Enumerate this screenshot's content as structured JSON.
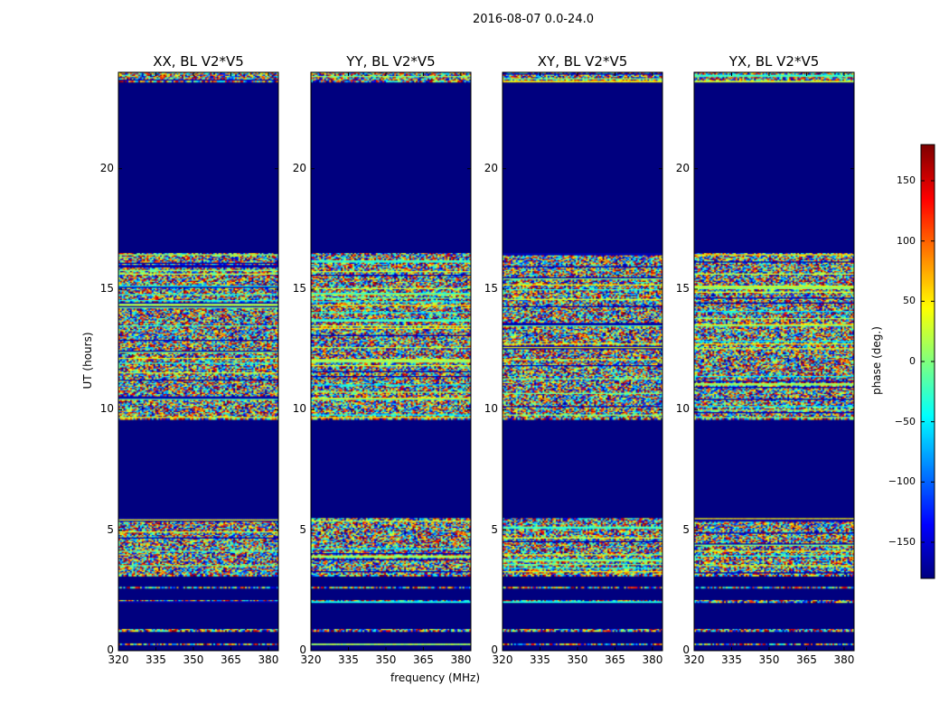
{
  "chart_data": {
    "type": "heatmap",
    "title": "2016-08-07 0.0-24.0",
    "panels": [
      {
        "title": "XX, BL V2*V5"
      },
      {
        "title": "YY, BL V2*V5"
      },
      {
        "title": "XY, BL V2*V5"
      },
      {
        "title": "YX, BL V2*V5"
      }
    ],
    "xlabel": "frequency (MHz)",
    "ylabel": "UT (hours)",
    "xlim": [
      320,
      384
    ],
    "ylim": [
      0,
      24
    ],
    "xticks": [
      320,
      335,
      350,
      365,
      380
    ],
    "yticks": [
      0,
      5,
      10,
      15,
      20
    ],
    "colormap": "jet",
    "colorbar": {
      "label": "phase (deg.)",
      "range": [
        -180,
        180
      ],
      "ticks": [
        -150,
        -100,
        -50,
        0,
        50,
        100,
        150
      ]
    },
    "masked_color": "#00007f",
    "data_time_ranges_hours": [
      [
        0.25,
        0.32
      ],
      [
        0.82,
        0.88
      ],
      [
        2.02,
        2.08
      ],
      [
        2.58,
        2.64
      ],
      [
        3.1,
        5.5
      ],
      [
        9.6,
        16.5
      ],
      [
        23.6,
        24.0
      ]
    ]
  }
}
